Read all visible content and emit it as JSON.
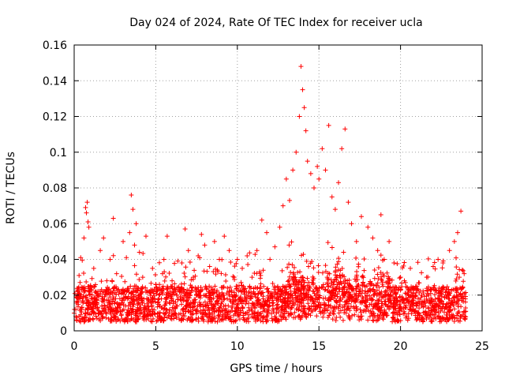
{
  "chart_data": {
    "type": "scatter",
    "title": "Day 024 of 2024, Rate Of TEC Index for receiver ucla",
    "xlabel": "GPS time / hours",
    "ylabel": "ROTI / TECUs",
    "xlim": [
      0,
      25
    ],
    "ylim": [
      0,
      0.16
    ],
    "xticks": [
      0,
      5,
      10,
      15,
      20,
      25
    ],
    "xtick_labels": [
      "0",
      "5",
      "10",
      "15",
      "20",
      "25"
    ],
    "yticks": [
      0,
      0.02,
      0.04,
      0.06,
      0.08,
      0.1,
      0.12,
      0.14,
      0.16
    ],
    "ytick_labels": [
      "0",
      "0.02",
      "0.04",
      "0.06",
      "0.08",
      "0.1",
      "0.12",
      "0.14",
      "0.16"
    ],
    "grid": true,
    "marker": "+",
    "color": "#ff0000",
    "series": [
      {
        "name": "ROTI",
        "points": [
          [
            0.1,
            0.012
          ],
          [
            0.2,
            0.022
          ],
          [
            0.3,
            0.031
          ],
          [
            0.4,
            0.041
          ],
          [
            0.5,
            0.018
          ],
          [
            0.6,
            0.052
          ],
          [
            0.7,
            0.069
          ],
          [
            0.75,
            0.066
          ],
          [
            0.8,
            0.072
          ],
          [
            0.85,
            0.061
          ],
          [
            0.9,
            0.058
          ],
          [
            1.0,
            0.025
          ],
          [
            1.2,
            0.035
          ],
          [
            1.4,
            0.015
          ],
          [
            1.6,
            0.045
          ],
          [
            1.8,
            0.052
          ],
          [
            2.0,
            0.028
          ],
          [
            2.2,
            0.04
          ],
          [
            2.4,
            0.063
          ],
          [
            2.6,
            0.032
          ],
          [
            2.8,
            0.018
          ],
          [
            3.0,
            0.05
          ],
          [
            3.2,
            0.041
          ],
          [
            3.4,
            0.055
          ],
          [
            3.5,
            0.076
          ],
          [
            3.6,
            0.068
          ],
          [
            3.7,
            0.048
          ],
          [
            3.8,
            0.06
          ],
          [
            4.0,
            0.044
          ],
          [
            4.2,
            0.03
          ],
          [
            4.4,
            0.053
          ],
          [
            4.6,
            0.022
          ],
          [
            4.8,
            0.035
          ],
          [
            5.0,
            0.026
          ],
          [
            5.2,
            0.018
          ],
          [
            5.5,
            0.04
          ],
          [
            5.7,
            0.053
          ],
          [
            6.0,
            0.028
          ],
          [
            6.3,
            0.02
          ],
          [
            6.6,
            0.038
          ],
          [
            6.8,
            0.057
          ],
          [
            7.0,
            0.045
          ],
          [
            7.3,
            0.03
          ],
          [
            7.6,
            0.042
          ],
          [
            7.8,
            0.054
          ],
          [
            8.0,
            0.048
          ],
          [
            8.3,
            0.036
          ],
          [
            8.6,
            0.05
          ],
          [
            8.9,
            0.04
          ],
          [
            9.2,
            0.053
          ],
          [
            9.5,
            0.045
          ],
          [
            9.8,
            0.03
          ],
          [
            10.0,
            0.04
          ],
          [
            10.3,
            0.035
          ],
          [
            10.6,
            0.042
          ],
          [
            10.9,
            0.03
          ],
          [
            11.2,
            0.045
          ],
          [
            11.5,
            0.062
          ],
          [
            11.8,
            0.055
          ],
          [
            12.0,
            0.04
          ],
          [
            12.3,
            0.047
          ],
          [
            12.6,
            0.058
          ],
          [
            12.8,
            0.07
          ],
          [
            13.0,
            0.085
          ],
          [
            13.2,
            0.073
          ],
          [
            13.4,
            0.09
          ],
          [
            13.6,
            0.1
          ],
          [
            13.8,
            0.12
          ],
          [
            13.9,
            0.148
          ],
          [
            14.0,
            0.135
          ],
          [
            14.1,
            0.125
          ],
          [
            14.2,
            0.112
          ],
          [
            14.3,
            0.095
          ],
          [
            14.5,
            0.088
          ],
          [
            14.7,
            0.08
          ],
          [
            14.9,
            0.092
          ],
          [
            15.0,
            0.085
          ],
          [
            15.2,
            0.102
          ],
          [
            15.4,
            0.09
          ],
          [
            15.6,
            0.115
          ],
          [
            15.8,
            0.075
          ],
          [
            16.0,
            0.068
          ],
          [
            16.2,
            0.083
          ],
          [
            16.4,
            0.102
          ],
          [
            16.6,
            0.113
          ],
          [
            16.8,
            0.072
          ],
          [
            17.0,
            0.06
          ],
          [
            17.3,
            0.05
          ],
          [
            17.6,
            0.064
          ],
          [
            18.0,
            0.058
          ],
          [
            18.3,
            0.052
          ],
          [
            18.6,
            0.045
          ],
          [
            18.8,
            0.065
          ],
          [
            19.0,
            0.04
          ],
          [
            19.3,
            0.05
          ],
          [
            19.6,
            0.038
          ],
          [
            20.0,
            0.03
          ],
          [
            20.3,
            0.027
          ],
          [
            20.6,
            0.035
          ],
          [
            21.0,
            0.025
          ],
          [
            21.3,
            0.02
          ],
          [
            21.6,
            0.03
          ],
          [
            22.0,
            0.036
          ],
          [
            22.3,
            0.04
          ],
          [
            22.6,
            0.038
          ],
          [
            23.0,
            0.045
          ],
          [
            23.3,
            0.05
          ],
          [
            23.5,
            0.055
          ],
          [
            23.7,
            0.067
          ],
          [
            23.9,
            0.032
          ]
        ]
      }
    ],
    "baseline_band": {
      "description": "dense cluster of low ROTI values across the full day",
      "x_range": [
        0,
        24
      ],
      "typical_low": 0.005,
      "typical_high": 0.025
    }
  }
}
